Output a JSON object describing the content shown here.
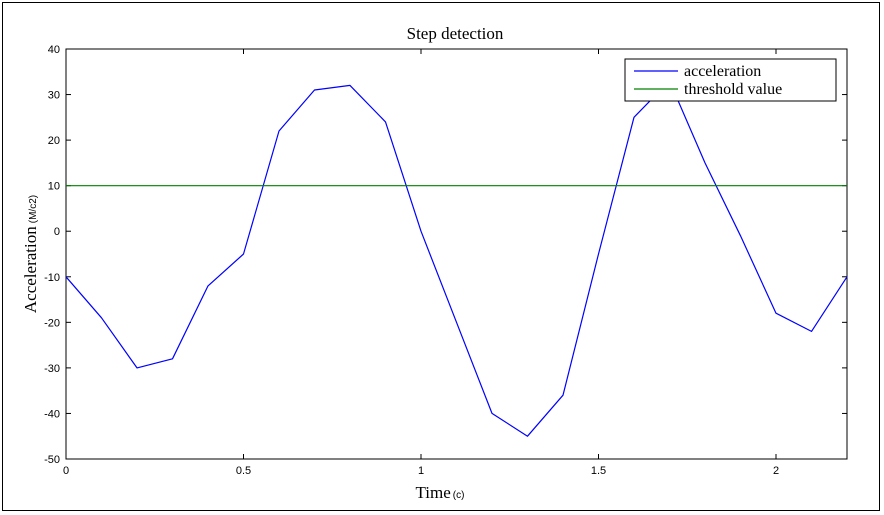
{
  "chart_data": {
    "type": "line",
    "title": "Step detection",
    "xlabel": "Time",
    "xlabel_unit": "(c)",
    "ylabel": "Acceleration",
    "ylabel_unit": "(M/c2)",
    "xlim": [
      0,
      2.2
    ],
    "ylim": [
      -50,
      40
    ],
    "x_ticks": [
      0,
      0.5,
      1,
      1.5,
      2
    ],
    "x_tick_labels": [
      "0",
      "0.5",
      "1",
      "1.5",
      "2"
    ],
    "y_ticks": [
      -50,
      -40,
      -30,
      -20,
      -10,
      0,
      10,
      20,
      30,
      40
    ],
    "y_tick_labels": [
      "-50",
      "-40",
      "-30",
      "-20",
      "-10",
      "0",
      "10",
      "20",
      "30",
      "40"
    ],
    "grid": false,
    "legend_position": "top-right",
    "series": [
      {
        "name": "acceleration",
        "color": "#0000ff",
        "x": [
          0,
          0.1,
          0.2,
          0.3,
          0.4,
          0.5,
          0.6,
          0.7,
          0.8,
          0.9,
          1.0,
          1.1,
          1.2,
          1.3,
          1.4,
          1.5,
          1.6,
          1.7,
          1.8,
          1.9,
          2.0,
          2.1,
          2.2
        ],
        "y": [
          -10,
          -19,
          -30,
          -28,
          -12,
          -5,
          22,
          31,
          32,
          24,
          0,
          -20,
          -40,
          -45,
          -36,
          -5,
          25,
          33,
          15,
          -1,
          -18,
          -22,
          -10
        ]
      },
      {
        "name": "threshold value",
        "color": "#008000",
        "x": [
          0,
          2.2
        ],
        "y": [
          10,
          10
        ]
      }
    ]
  }
}
